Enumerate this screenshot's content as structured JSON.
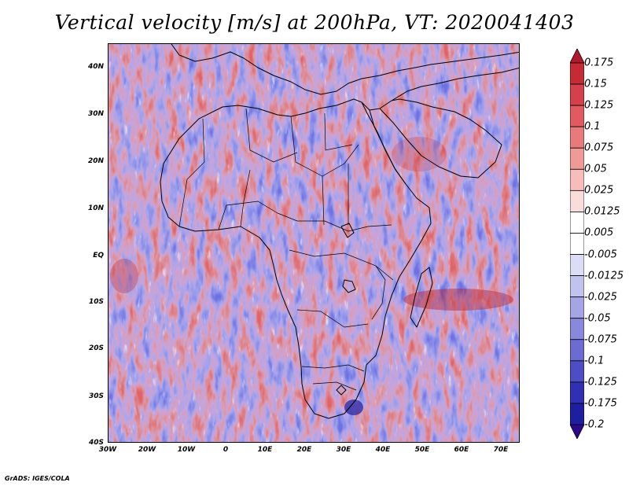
{
  "title": "Vertical velocity [m/s] at 200hPa, VT: 2020041403",
  "credit": "GrADS: IGES/COLA",
  "axes": {
    "y_labels": [
      "40N",
      "30N",
      "20N",
      "10N",
      "EQ",
      "10S",
      "20S",
      "30S",
      "40S"
    ],
    "x_labels": [
      "30W",
      "20W",
      "10W",
      "0",
      "10E",
      "20E",
      "30E",
      "40E",
      "50E",
      "60E",
      "70E"
    ]
  },
  "colorbar": {
    "labels": [
      "0.175",
      "0.15",
      "0.125",
      "0.1",
      "0.075",
      "0.05",
      "0.025",
      "0.0125",
      "0.005",
      "-0.005",
      "-0.0125",
      "-0.025",
      "-0.05",
      "-0.075",
      "-0.1",
      "-0.125",
      "-0.175",
      "-0.2"
    ],
    "colors": [
      "#b2182b",
      "#c52a35",
      "#d6404a",
      "#e05a5f",
      "#e97a7b",
      "#f09a98",
      "#f6bdbb",
      "#fadcda",
      "#ffffff",
      "#ffffff",
      "#dcdcf6",
      "#c2c2ef",
      "#a5a5e6",
      "#8888dc",
      "#6b6bd1",
      "#4d4dc4",
      "#3030b4",
      "#1e1ea0",
      "#2a0a8a"
    ]
  },
  "map": {
    "projection": "lat-lon",
    "lon_range": [
      -30,
      75
    ],
    "lat_range": [
      -40,
      45
    ],
    "field_colors": {
      "ascent": "#e2504f",
      "descent": "#5c5fe0",
      "neutral": "#ffffff"
    },
    "coastline_color": "#000000"
  }
}
